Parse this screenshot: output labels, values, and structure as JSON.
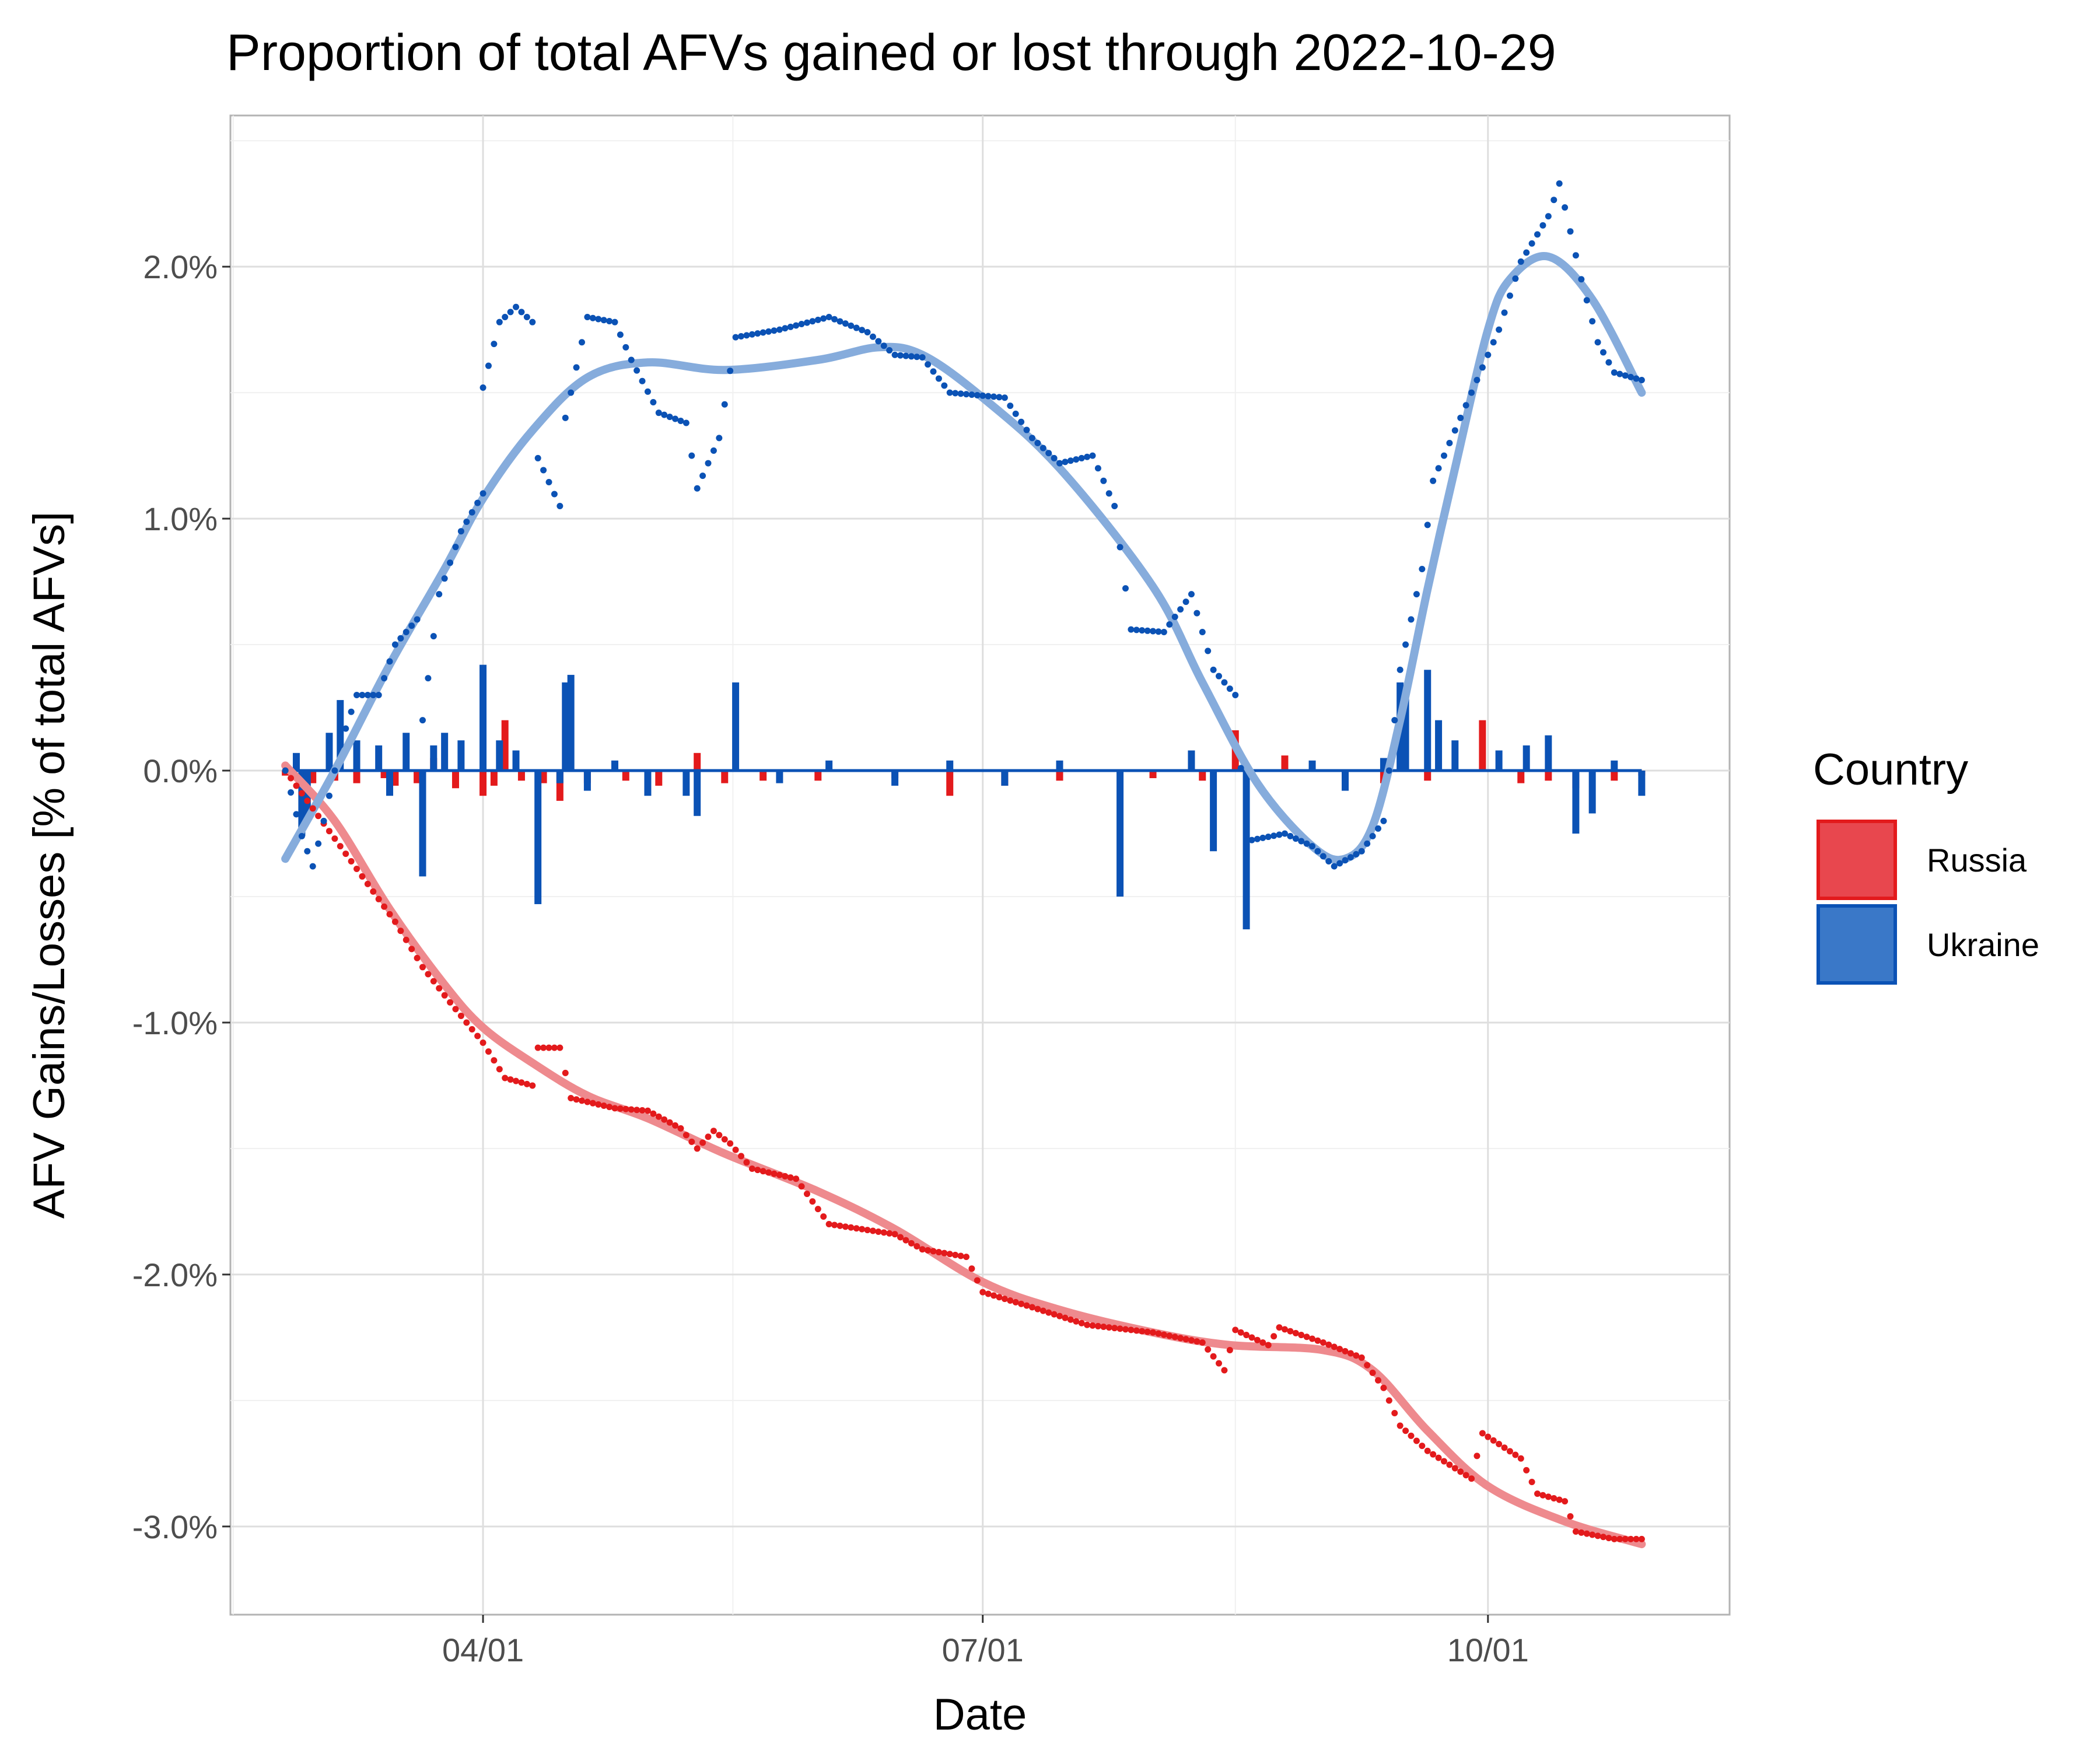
{
  "chart_data": {
    "type": "line",
    "title": "Proportion of total AFVs gained or lost through 2022-10-29",
    "xlabel": "Date",
    "ylabel": "AFV Gains/Losses [% of total AFVs]",
    "x_domain": [
      "2022-02-14",
      "2022-11-14"
    ],
    "ylim": [
      -3.35,
      2.6
    ],
    "y_ticks": [
      {
        "value": 2.0,
        "label": "2.0%"
      },
      {
        "value": 1.0,
        "label": "1.0%"
      },
      {
        "value": 0.0,
        "label": "0.0%"
      },
      {
        "value": -1.0,
        "label": "-1.0%"
      },
      {
        "value": -2.0,
        "label": "-2.0%"
      },
      {
        "value": -3.0,
        "label": "-3.0%"
      }
    ],
    "x_ticks": [
      {
        "value": "2022-04-01",
        "label": "04/01"
      },
      {
        "value": "2022-07-01",
        "label": "07/01"
      },
      {
        "value": "2022-10-01",
        "label": "10/01"
      }
    ],
    "grid": true,
    "legend": {
      "title": "Country",
      "position": "right",
      "entries": [
        {
          "name": "Russia",
          "fill": "#e8474e",
          "stroke": "#e31a1c"
        },
        {
          "name": "Ukraine",
          "fill": "#3a78c8",
          "stroke": "#0b52b5"
        }
      ]
    },
    "series": [
      {
        "name": "Russia",
        "color": "#e31a1c",
        "smooth_color": "#ee8a8e",
        "cumulative": [
          [
            "2022-02-24",
            0.0
          ],
          [
            "2022-03-01",
            -0.15
          ],
          [
            "2022-03-06",
            -0.3
          ],
          [
            "2022-03-11",
            -0.45
          ],
          [
            "2022-03-16",
            -0.6
          ],
          [
            "2022-03-21",
            -0.78
          ],
          [
            "2022-03-26",
            -0.92
          ],
          [
            "2022-04-01",
            -1.08
          ],
          [
            "2022-04-05",
            -1.22
          ],
          [
            "2022-04-10",
            -1.25
          ],
          [
            "2022-04-11",
            -1.1
          ],
          [
            "2022-04-15",
            -1.1
          ],
          [
            "2022-04-17",
            -1.3
          ],
          [
            "2022-04-25",
            -1.34
          ],
          [
            "2022-05-01",
            -1.35
          ],
          [
            "2022-05-07",
            -1.42
          ],
          [
            "2022-05-10",
            -1.5
          ],
          [
            "2022-05-13",
            -1.43
          ],
          [
            "2022-05-16",
            -1.48
          ],
          [
            "2022-05-20",
            -1.58
          ],
          [
            "2022-05-28",
            -1.62
          ],
          [
            "2022-06-03",
            -1.8
          ],
          [
            "2022-06-15",
            -1.84
          ],
          [
            "2022-06-20",
            -1.9
          ],
          [
            "2022-06-28",
            -1.93
          ],
          [
            "2022-07-01",
            -2.07
          ],
          [
            "2022-07-10",
            -2.13
          ],
          [
            "2022-07-20",
            -2.2
          ],
          [
            "2022-08-01",
            -2.23
          ],
          [
            "2022-08-10",
            -2.27
          ],
          [
            "2022-08-14",
            -2.38
          ],
          [
            "2022-08-16",
            -2.22
          ],
          [
            "2022-08-22",
            -2.28
          ],
          [
            "2022-08-24",
            -2.21
          ],
          [
            "2022-09-01",
            -2.27
          ],
          [
            "2022-09-08",
            -2.33
          ],
          [
            "2022-09-12",
            -2.45
          ],
          [
            "2022-09-15",
            -2.6
          ],
          [
            "2022-09-20",
            -2.7
          ],
          [
            "2022-09-28",
            -2.81
          ],
          [
            "2022-09-30",
            -2.63
          ],
          [
            "2022-10-07",
            -2.73
          ],
          [
            "2022-10-10",
            -2.87
          ],
          [
            "2022-10-15",
            -2.9
          ],
          [
            "2022-10-17",
            -3.02
          ],
          [
            "2022-10-24",
            -3.05
          ],
          [
            "2022-10-29",
            -3.05
          ]
        ],
        "smooth": [
          [
            "2022-02-24",
            0.02
          ],
          [
            "2022-03-05",
            -0.2
          ],
          [
            "2022-03-15",
            -0.55
          ],
          [
            "2022-03-25",
            -0.85
          ],
          [
            "2022-04-01",
            -1.02
          ],
          [
            "2022-04-10",
            -1.16
          ],
          [
            "2022-04-20",
            -1.29
          ],
          [
            "2022-05-01",
            -1.38
          ],
          [
            "2022-05-15",
            -1.52
          ],
          [
            "2022-06-01",
            -1.67
          ],
          [
            "2022-06-15",
            -1.82
          ],
          [
            "2022-07-01",
            -2.03
          ],
          [
            "2022-07-15",
            -2.14
          ],
          [
            "2022-08-01",
            -2.23
          ],
          [
            "2022-08-15",
            -2.28
          ],
          [
            "2022-09-01",
            -2.3
          ],
          [
            "2022-09-10",
            -2.38
          ],
          [
            "2022-09-20",
            -2.62
          ],
          [
            "2022-10-01",
            -2.84
          ],
          [
            "2022-10-15",
            -2.98
          ],
          [
            "2022-10-29",
            -3.07
          ]
        ],
        "daily": [
          [
            "2022-02-24",
            -0.02
          ],
          [
            "2022-03-01",
            -0.05
          ],
          [
            "2022-03-05",
            -0.04
          ],
          [
            "2022-03-09",
            -0.05
          ],
          [
            "2022-03-14",
            -0.03
          ],
          [
            "2022-03-16",
            -0.06
          ],
          [
            "2022-03-20",
            -0.05
          ],
          [
            "2022-03-23",
            0.05
          ],
          [
            "2022-03-27",
            -0.07
          ],
          [
            "2022-04-01",
            -0.1
          ],
          [
            "2022-04-03",
            -0.06
          ],
          [
            "2022-04-05",
            0.2
          ],
          [
            "2022-04-08",
            -0.04
          ],
          [
            "2022-04-12",
            -0.05
          ],
          [
            "2022-04-15",
            -0.12
          ],
          [
            "2022-04-20",
            -0.05
          ],
          [
            "2022-04-27",
            -0.04
          ],
          [
            "2022-05-03",
            -0.06
          ],
          [
            "2022-05-10",
            0.07
          ],
          [
            "2022-05-15",
            -0.05
          ],
          [
            "2022-05-22",
            -0.04
          ],
          [
            "2022-06-01",
            -0.04
          ],
          [
            "2022-06-15",
            -0.03
          ],
          [
            "2022-06-25",
            -0.1
          ],
          [
            "2022-07-05",
            -0.06
          ],
          [
            "2022-07-15",
            -0.04
          ],
          [
            "2022-08-01",
            -0.03
          ],
          [
            "2022-08-10",
            -0.04
          ],
          [
            "2022-08-16",
            0.16
          ],
          [
            "2022-08-25",
            0.06
          ],
          [
            "2022-09-05",
            -0.04
          ],
          [
            "2022-09-12",
            -0.05
          ],
          [
            "2022-09-20",
            -0.04
          ],
          [
            "2022-09-30",
            0.2
          ],
          [
            "2022-10-07",
            -0.05
          ],
          [
            "2022-10-12",
            -0.04
          ],
          [
            "2022-10-17",
            -0.07
          ],
          [
            "2022-10-24",
            -0.04
          ],
          [
            "2022-10-29",
            -0.02
          ]
        ]
      },
      {
        "name": "Ukraine",
        "color": "#0b52b5",
        "smooth_color": "#86acdc",
        "cumulative": [
          [
            "2022-02-24",
            0.0
          ],
          [
            "2022-02-27",
            -0.26
          ],
          [
            "2022-03-01",
            -0.38
          ],
          [
            "2022-03-03",
            -0.2
          ],
          [
            "2022-03-06",
            0.1
          ],
          [
            "2022-03-09",
            0.3
          ],
          [
            "2022-03-13",
            0.3
          ],
          [
            "2022-03-16",
            0.5
          ],
          [
            "2022-03-20",
            0.6
          ],
          [
            "2022-03-21",
            0.2
          ],
          [
            "2022-03-24",
            0.7
          ],
          [
            "2022-03-28",
            0.95
          ],
          [
            "2022-04-01",
            1.1
          ],
          [
            "2022-04-01",
            1.52
          ],
          [
            "2022-04-04",
            1.78
          ],
          [
            "2022-04-07",
            1.84
          ],
          [
            "2022-04-10",
            1.78
          ],
          [
            "2022-04-11",
            1.24
          ],
          [
            "2022-04-15",
            1.05
          ],
          [
            "2022-04-16",
            1.4
          ],
          [
            "2022-04-20",
            1.8
          ],
          [
            "2022-04-25",
            1.78
          ],
          [
            "2022-04-28",
            1.63
          ],
          [
            "2022-05-03",
            1.42
          ],
          [
            "2022-05-08",
            1.38
          ],
          [
            "2022-05-10",
            1.12
          ],
          [
            "2022-05-14",
            1.32
          ],
          [
            "2022-05-17",
            1.72
          ],
          [
            "2022-05-25",
            1.75
          ],
          [
            "2022-06-03",
            1.8
          ],
          [
            "2022-06-10",
            1.74
          ],
          [
            "2022-06-15",
            1.65
          ],
          [
            "2022-06-20",
            1.64
          ],
          [
            "2022-06-25",
            1.5
          ],
          [
            "2022-07-05",
            1.48
          ],
          [
            "2022-07-10",
            1.32
          ],
          [
            "2022-07-15",
            1.22
          ],
          [
            "2022-07-21",
            1.25
          ],
          [
            "2022-07-25",
            1.05
          ],
          [
            "2022-07-28",
            0.56
          ],
          [
            "2022-08-03",
            0.55
          ],
          [
            "2022-08-08",
            0.7
          ],
          [
            "2022-08-12",
            0.4
          ],
          [
            "2022-08-16",
            0.3
          ],
          [
            "2022-08-18",
            -0.28
          ],
          [
            "2022-08-25",
            -0.25
          ],
          [
            "2022-08-30",
            -0.3
          ],
          [
            "2022-09-03",
            -0.38
          ],
          [
            "2022-09-08",
            -0.32
          ],
          [
            "2022-09-12",
            -0.2
          ],
          [
            "2022-09-15",
            0.4
          ],
          [
            "2022-09-19",
            0.8
          ],
          [
            "2022-09-21",
            1.15
          ],
          [
            "2022-09-25",
            1.35
          ],
          [
            "2022-09-30",
            1.6
          ],
          [
            "2022-10-03",
            1.75
          ],
          [
            "2022-10-07",
            2.02
          ],
          [
            "2022-10-12",
            2.2
          ],
          [
            "2022-10-14",
            2.33
          ],
          [
            "2022-10-18",
            1.95
          ],
          [
            "2022-10-21",
            1.7
          ],
          [
            "2022-10-24",
            1.58
          ],
          [
            "2022-10-29",
            1.55
          ]
        ],
        "smooth": [
          [
            "2022-02-24",
            -0.35
          ],
          [
            "2022-03-05",
            0.0
          ],
          [
            "2022-03-15",
            0.42
          ],
          [
            "2022-03-25",
            0.8
          ],
          [
            "2022-04-01",
            1.08
          ],
          [
            "2022-04-10",
            1.35
          ],
          [
            "2022-04-20",
            1.56
          ],
          [
            "2022-05-01",
            1.62
          ],
          [
            "2022-05-15",
            1.59
          ],
          [
            "2022-06-01",
            1.63
          ],
          [
            "2022-06-12",
            1.68
          ],
          [
            "2022-06-20",
            1.65
          ],
          [
            "2022-07-01",
            1.48
          ],
          [
            "2022-07-15",
            1.2
          ],
          [
            "2022-08-01",
            0.73
          ],
          [
            "2022-08-10",
            0.35
          ],
          [
            "2022-08-20",
            -0.05
          ],
          [
            "2022-08-30",
            -0.3
          ],
          [
            "2022-09-05",
            -0.35
          ],
          [
            "2022-09-10",
            -0.22
          ],
          [
            "2022-09-15",
            0.2
          ],
          [
            "2022-09-20",
            0.72
          ],
          [
            "2022-09-25",
            1.2
          ],
          [
            "2022-10-01",
            1.75
          ],
          [
            "2022-10-05",
            1.95
          ],
          [
            "2022-10-12",
            2.04
          ],
          [
            "2022-10-20",
            1.87
          ],
          [
            "2022-10-29",
            1.5
          ]
        ],
        "daily": [
          [
            "2022-02-26",
            0.07
          ],
          [
            "2022-02-27",
            -0.26
          ],
          [
            "2022-02-28",
            -0.2
          ],
          [
            "2022-03-04",
            0.15
          ],
          [
            "2022-03-06",
            0.28
          ],
          [
            "2022-03-09",
            0.12
          ],
          [
            "2022-03-13",
            0.1
          ],
          [
            "2022-03-15",
            -0.1
          ],
          [
            "2022-03-18",
            0.15
          ],
          [
            "2022-03-21",
            -0.42
          ],
          [
            "2022-03-23",
            0.1
          ],
          [
            "2022-03-25",
            0.15
          ],
          [
            "2022-03-28",
            0.12
          ],
          [
            "2022-04-01",
            0.42
          ],
          [
            "2022-04-04",
            0.12
          ],
          [
            "2022-04-07",
            0.08
          ],
          [
            "2022-04-11",
            -0.53
          ],
          [
            "2022-04-15",
            -0.05
          ],
          [
            "2022-04-16",
            0.35
          ],
          [
            "2022-04-17",
            0.38
          ],
          [
            "2022-04-20",
            -0.08
          ],
          [
            "2022-04-25",
            0.04
          ],
          [
            "2022-05-01",
            -0.1
          ],
          [
            "2022-05-08",
            -0.1
          ],
          [
            "2022-05-10",
            -0.18
          ],
          [
            "2022-05-17",
            0.35
          ],
          [
            "2022-05-25",
            -0.05
          ],
          [
            "2022-06-03",
            0.04
          ],
          [
            "2022-06-15",
            -0.06
          ],
          [
            "2022-06-25",
            0.04
          ],
          [
            "2022-07-05",
            -0.06
          ],
          [
            "2022-07-15",
            0.04
          ],
          [
            "2022-07-26",
            -0.5
          ],
          [
            "2022-08-08",
            0.08
          ],
          [
            "2022-08-12",
            -0.32
          ],
          [
            "2022-08-18",
            -0.63
          ],
          [
            "2022-08-30",
            0.04
          ],
          [
            "2022-09-05",
            -0.08
          ],
          [
            "2022-09-12",
            0.05
          ],
          [
            "2022-09-15",
            0.35
          ],
          [
            "2022-09-16",
            0.3
          ],
          [
            "2022-09-20",
            0.4
          ],
          [
            "2022-09-22",
            0.2
          ],
          [
            "2022-09-25",
            0.12
          ],
          [
            "2022-10-03",
            0.08
          ],
          [
            "2022-10-08",
            0.1
          ],
          [
            "2022-10-12",
            0.14
          ],
          [
            "2022-10-17",
            -0.25
          ],
          [
            "2022-10-20",
            -0.17
          ],
          [
            "2022-10-24",
            0.04
          ],
          [
            "2022-10-29",
            -0.1
          ]
        ]
      }
    ]
  }
}
